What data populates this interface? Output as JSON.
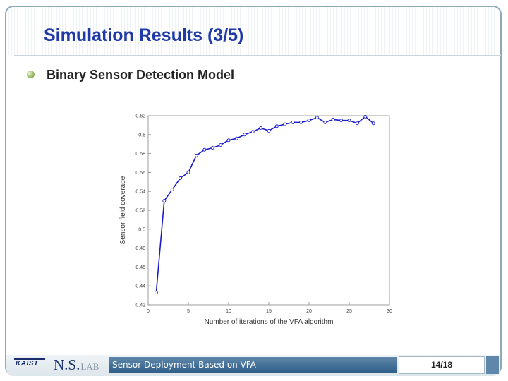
{
  "slide": {
    "title": "Simulation Results (3/5)",
    "bullet": "Binary Sensor Detection Model"
  },
  "footer": {
    "kaist": "KAIST",
    "lab_main": "N.S.",
    "lab_sub": "LAB",
    "center_text": "Sensor Deployment Based on VFA",
    "page": "14/18"
  },
  "chart_data": {
    "type": "line",
    "xlabel": "Number of iterations of the VFA algorithm",
    "ylabel": "Sensor field coverage",
    "xlim": [
      0,
      30
    ],
    "ylim": [
      0.42,
      0.62
    ],
    "xticks": [
      "0",
      "5",
      "10",
      "15",
      "20",
      "25",
      "30"
    ],
    "yticks": [
      "0.42",
      "0.44",
      "0.46",
      "0.48",
      "0.5",
      "0.52",
      "0.54",
      "0.56",
      "0.58",
      "0.6",
      "0.62"
    ],
    "series": [
      {
        "color": "#1a1acc",
        "marker": "circle-open",
        "x": [
          1,
          2,
          3,
          4,
          5,
          6,
          7,
          8,
          9,
          10,
          11,
          12,
          13,
          14,
          15,
          16,
          17,
          18,
          19,
          20,
          21,
          22,
          23,
          24,
          25,
          26,
          27,
          28
        ],
        "y": [
          0.433,
          0.53,
          0.542,
          0.554,
          0.56,
          0.578,
          0.584,
          0.586,
          0.589,
          0.594,
          0.596,
          0.6,
          0.603,
          0.607,
          0.604,
          0.609,
          0.611,
          0.613,
          0.613,
          0.615,
          0.618,
          0.613,
          0.616,
          0.615,
          0.615,
          0.612,
          0.619,
          0.612
        ]
      }
    ],
    "grid": false
  }
}
